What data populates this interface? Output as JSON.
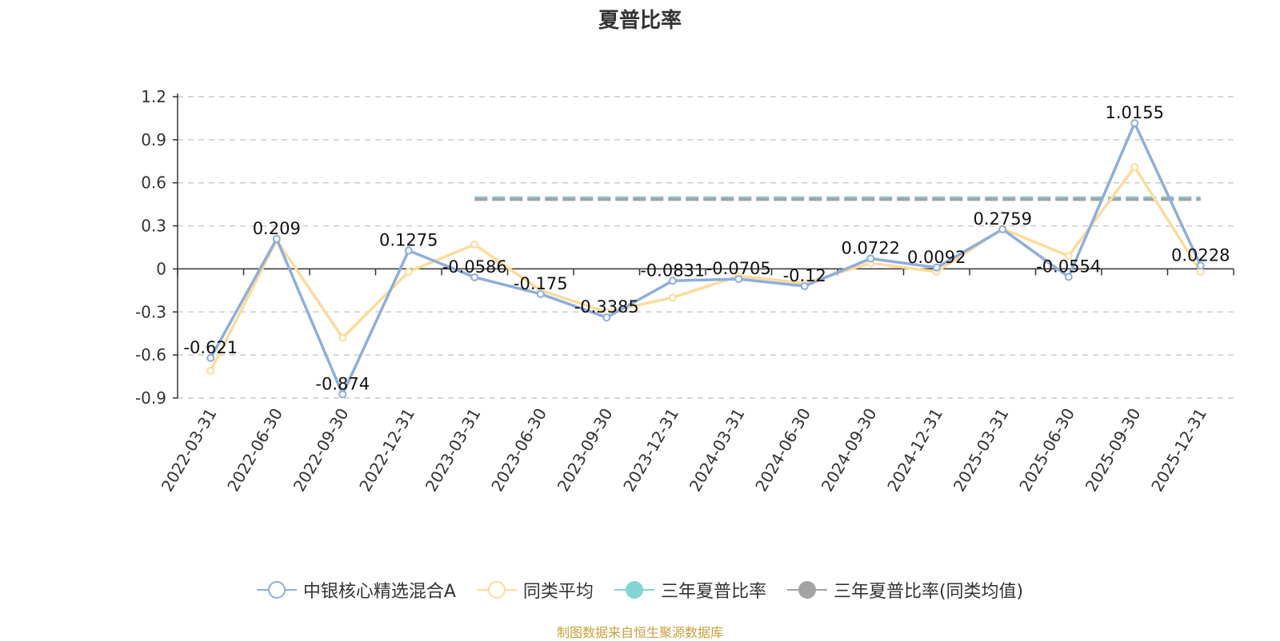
{
  "chart_data": {
    "type": "line",
    "title": "夏普比率",
    "categories": [
      "2022-03-31",
      "2022-06-30",
      "2022-09-30",
      "2022-12-31",
      "2023-03-31",
      "2023-06-30",
      "2023-09-30",
      "2023-12-31",
      "2024-03-31",
      "2024-06-30",
      "2024-09-30",
      "2024-12-31",
      "2025-03-31",
      "2025-06-30",
      "2025-09-30",
      "2025-12-31"
    ],
    "y_ticks": [
      "1.2",
      "0.9",
      "0.6",
      "0.3",
      "0",
      "-0.3",
      "-0.6",
      "-0.9"
    ],
    "ylim": [
      -0.9,
      1.2
    ],
    "grid": "horizontal-dashed",
    "legend_position": "bottom",
    "series": [
      {
        "name": "中银核心精选混合A",
        "color": "#8eaedb",
        "values": [
          -0.621,
          0.209,
          -0.874,
          0.1275,
          -0.0586,
          -0.175,
          -0.3385,
          -0.0831,
          -0.0705,
          -0.12,
          0.0722,
          0.0092,
          0.2759,
          -0.0554,
          1.0155,
          0.0228
        ],
        "labels": [
          "-0.621",
          "0.209",
          "-0.874",
          "0.1275",
          "-0.0586",
          "-0.175",
          "-0.3385",
          "-0.0831",
          "-0.0705",
          "-0.12",
          "0.0722",
          "0.0092",
          "0.2759",
          "-0.0554",
          "1.0155",
          "0.0228"
        ]
      },
      {
        "name": "同类平均",
        "color": "#fddb9a",
        "values": [
          -0.71,
          0.2,
          -0.48,
          -0.02,
          0.17,
          -0.15,
          -0.3,
          -0.2,
          -0.05,
          -0.1,
          0.04,
          -0.02,
          0.28,
          0.09,
          0.71,
          -0.02
        ]
      },
      {
        "name": "三年夏普比率",
        "color": "#84d3d5",
        "start_category": "2023-03-31",
        "end_category": "2025-12-31",
        "value": 0.495
      },
      {
        "name": "三年夏普比率(同类均值)",
        "color": "#a3a3a3",
        "start_category": "2023-03-31",
        "end_category": "2025-12-31",
        "value": 0.485
      }
    ]
  },
  "legend": {
    "items": [
      "中银核心精选混合A",
      "同类平均",
      "三年夏普比率",
      "三年夏普比率(同类均值)"
    ]
  },
  "source": "制图数据来自恒生聚源数据库"
}
